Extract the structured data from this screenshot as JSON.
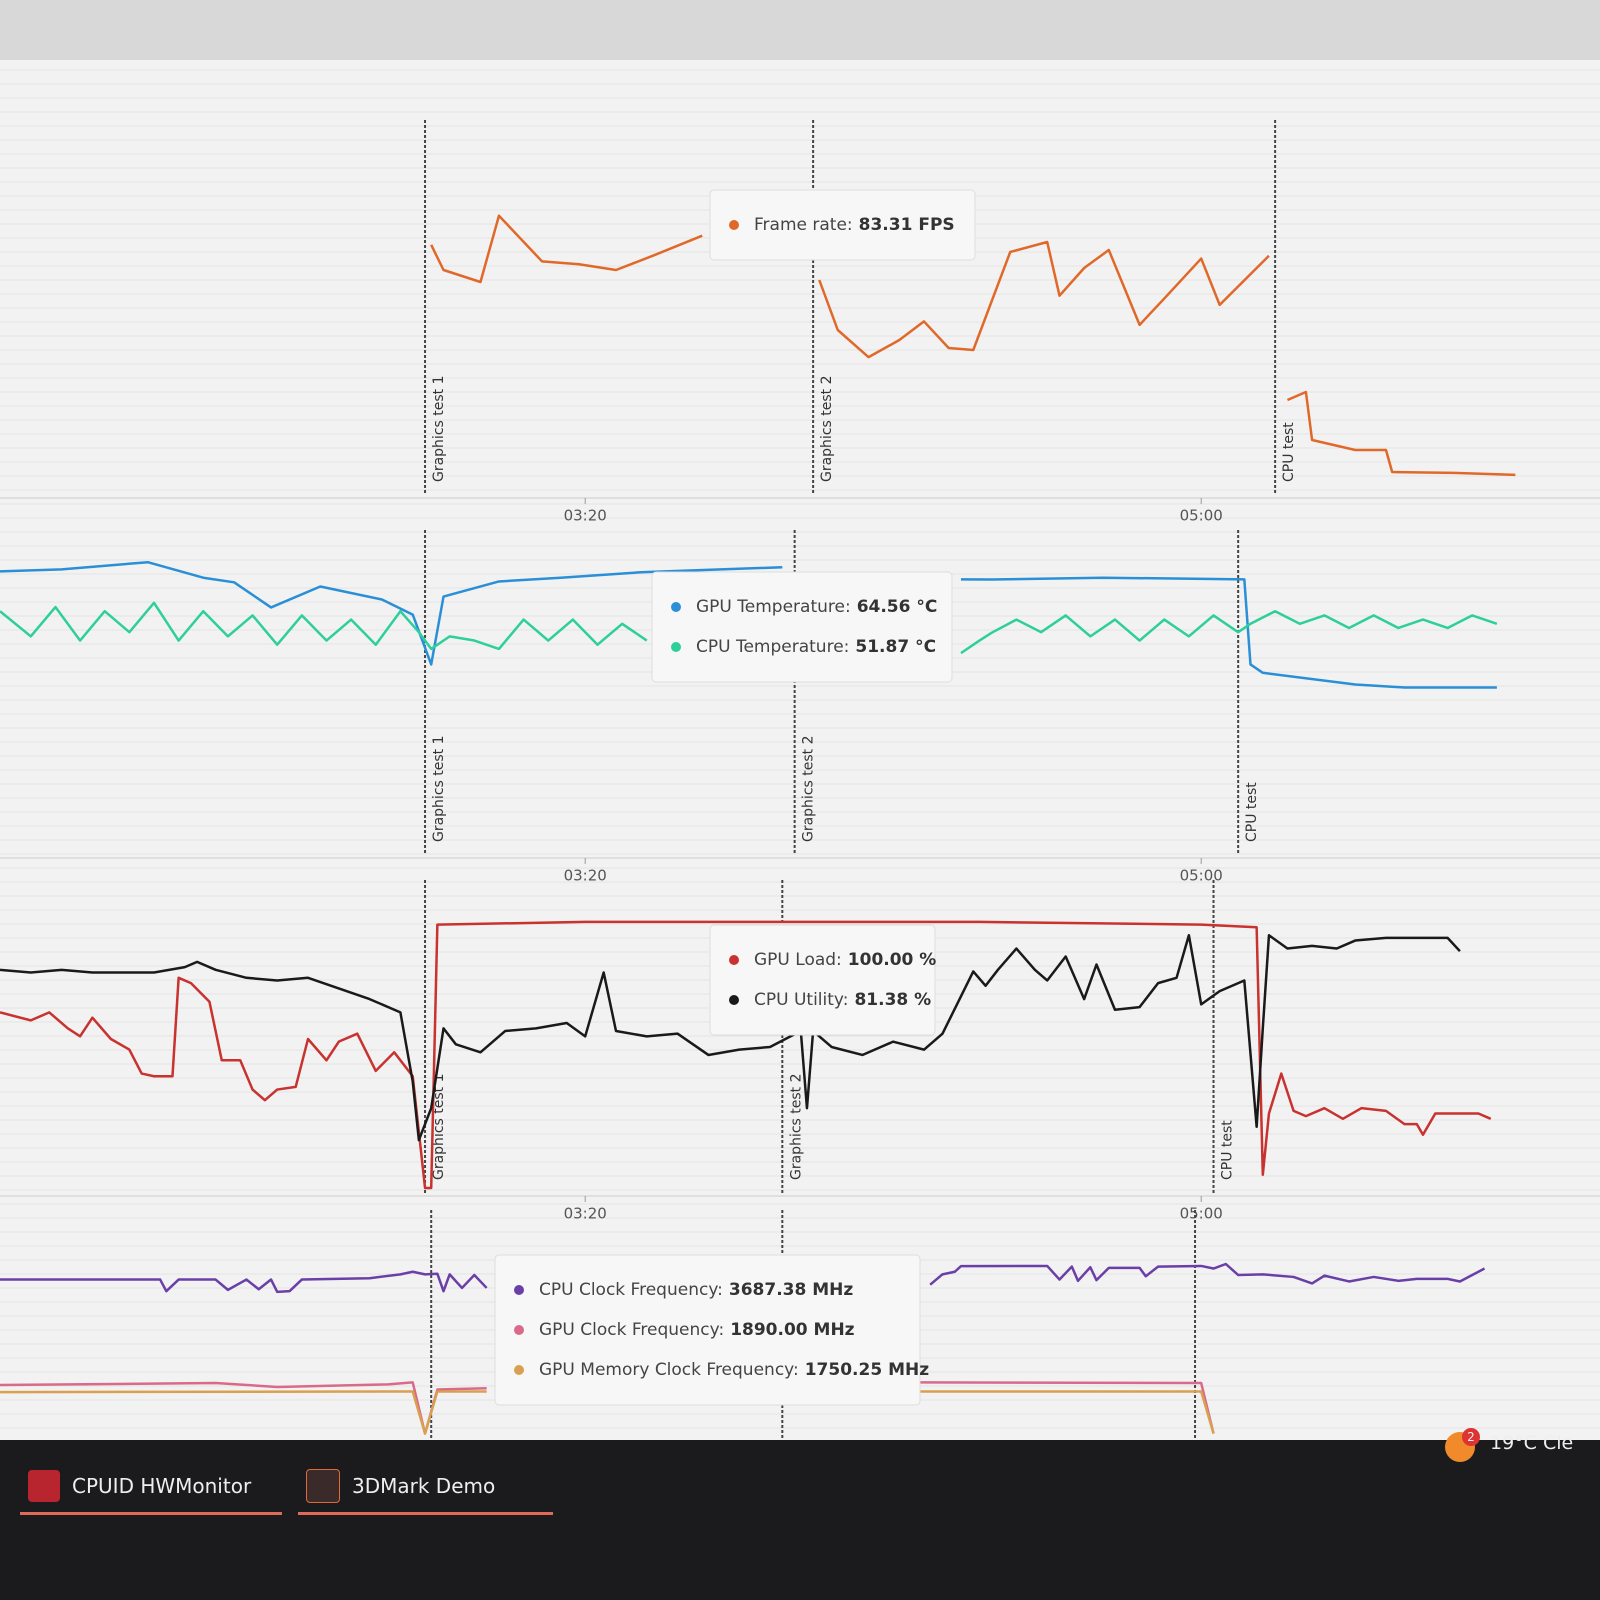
{
  "chart_data": [
    {
      "type": "line",
      "xlim": [
        105,
        355
      ],
      "ylim": [
        0,
        126
      ],
      "xticks": [
        {
          "value": 200,
          "label": "03:20"
        },
        {
          "value": 300,
          "label": "05:00"
        }
      ],
      "markers": [
        {
          "x": 174,
          "label": "Graphics test 1"
        },
        {
          "x": 237,
          "label": "Graphics test 2"
        },
        {
          "x": 312,
          "label": "CPU test"
        }
      ],
      "series": [
        {
          "color": "#e0692a",
          "x": [
            175,
            177,
            183,
            186,
            193,
            199,
            205,
            211,
            219,
            225,
            238,
            241,
            246,
            251,
            255,
            259,
            263,
            269,
            275,
            277,
            281,
            285,
            290,
            294,
            300,
            303,
            311,
            313,
            314,
            317,
            318,
            325,
            330,
            331,
            341,
            351
          ],
          "values": [
            85.8,
            77,
            72.8,
            96,
            80,
            79,
            77,
            82,
            89,
            null,
            73.5,
            56,
            46.5,
            52.5,
            59,
            49.7,
            49,
            83.31,
            86.8,
            68,
            77.7,
            84,
            57.8,
            67,
            81,
            64.8,
            82,
            null,
            31.5,
            34.3,
            17.5,
            14,
            14,
            6.3,
            6,
            5.3
          ]
        }
      ],
      "tooltip": [
        {
          "label": "Frame rate:",
          "value": "83.31 FPS"
        }
      ]
    },
    {
      "type": "line",
      "xlim": [
        105,
        355
      ],
      "ylim": [
        0,
        74
      ],
      "xticks": [
        {
          "value": 200,
          "label": "03:20"
        },
        {
          "value": 300,
          "label": "05:00"
        }
      ],
      "markers": [
        {
          "x": 174,
          "label": "Graphics test 1"
        },
        {
          "x": 234,
          "label": "Graphics test 2"
        },
        {
          "x": 306,
          "label": "CPU test"
        }
      ],
      "series": [
        {
          "color": "#2a8fd6",
          "x": [
            105,
            115,
            129,
            138,
            143,
            149,
            157,
            167,
            172,
            175,
            177,
            186,
            196,
            209,
            232,
            240,
            261,
            266,
            284,
            307,
            308,
            310,
            325,
            333,
            348
          ],
          "values": [
            66.5,
            67,
            68.7,
            65,
            63.9,
            57.9,
            62.9,
            59.8,
            56.2,
            44.3,
            60.5,
            64.1,
            65,
            66.3,
            67.5,
            null,
            64.6,
            64.56,
            65,
            64.6,
            44.3,
            42.3,
            39.5,
            38.8,
            38.8
          ]
        },
        {
          "color": "#2ecf9a",
          "x": [
            105,
            110,
            114,
            118,
            122,
            126,
            130,
            134,
            138,
            142,
            146,
            150,
            154,
            158,
            162,
            166,
            170,
            173,
            175,
            178,
            182,
            186,
            190,
            194,
            198,
            202,
            206,
            210,
            215,
            261,
            264,
            266,
            270,
            274,
            278,
            282,
            286,
            290,
            294,
            298,
            302,
            306,
            308,
            312,
            316,
            320,
            324,
            328,
            332,
            336,
            340,
            344,
            348
          ],
          "values": [
            57,
            51,
            58,
            50,
            57,
            52,
            59,
            50,
            57,
            51,
            56,
            49,
            56,
            50,
            55,
            49,
            57,
            52,
            48,
            51,
            50,
            48,
            55,
            50,
            55,
            49,
            54,
            50,
            null,
            47,
            50,
            51.87,
            55,
            52,
            56,
            51,
            55,
            50,
            55,
            51,
            56,
            52,
            54,
            57,
            54,
            56,
            53,
            56,
            53,
            55,
            53,
            56,
            54
          ]
        }
      ],
      "tooltip": [
        {
          "label": "GPU Temperature:",
          "value": "64.56 °C"
        },
        {
          "label": "CPU Temperature:",
          "value": "51.87 °C"
        }
      ]
    },
    {
      "type": "line",
      "xlim": [
        105,
        355
      ],
      "ylim": [
        0,
        112
      ],
      "xticks": [
        {
          "value": 200,
          "label": "03:20"
        },
        {
          "value": 300,
          "label": "05:00"
        }
      ],
      "markers": [
        {
          "x": 174,
          "label": "Graphics test 1"
        },
        {
          "x": 232,
          "label": "Graphics test 2"
        },
        {
          "x": 302,
          "label": "CPU test"
        }
      ],
      "series": [
        {
          "color": "#c8322f",
          "x": [
            105,
            110,
            113,
            116,
            118,
            120,
            123,
            126,
            128,
            130,
            133,
            134,
            136,
            139,
            141,
            144,
            146,
            148,
            150,
            153,
            155,
            158,
            160,
            163,
            166,
            169,
            172,
            174,
            175,
            176,
            200,
            236,
            264,
            300,
            309,
            310,
            311,
            313,
            315,
            317,
            320,
            323,
            326,
            330,
            333,
            335,
            336,
            338,
            345,
            347
          ],
          "values": [
            66,
            63,
            66,
            60,
            57,
            64,
            56,
            52,
            43,
            42,
            42,
            79,
            77,
            70,
            48,
            48,
            37,
            33,
            37,
            38,
            56,
            48,
            55,
            58,
            44,
            51,
            42,
            0,
            0,
            99,
            100,
            100,
            100,
            99,
            98,
            5,
            28,
            43,
            29,
            27,
            30,
            26,
            30,
            29,
            24,
            24,
            20,
            28,
            28,
            26
          ]
        },
        {
          "color": "#1a1a1a",
          "x": [
            105,
            110,
            115,
            120,
            125,
            130,
            135,
            137,
            140,
            145,
            150,
            155,
            160,
            165,
            170,
            172,
            173,
            175,
            177,
            179,
            183,
            187,
            192,
            197,
            200,
            203,
            205,
            210,
            215,
            220,
            225,
            230,
            235,
            236,
            237,
            240,
            245,
            250,
            255,
            258,
            263,
            265,
            267,
            270,
            273,
            275,
            278,
            281,
            283,
            286,
            290,
            293,
            296,
            298,
            300,
            303,
            307,
            309,
            310,
            311,
            314,
            318,
            322,
            325,
            330,
            335,
            340,
            342
          ],
          "values": [
            82,
            81,
            82,
            81,
            81,
            81,
            83,
            85,
            82,
            79,
            78,
            79,
            75,
            71,
            66,
            40,
            18,
            30,
            60,
            54,
            51,
            59,
            60,
            62,
            57,
            81,
            59,
            57,
            58,
            50,
            52,
            53,
            59,
            30,
            59,
            53,
            50,
            55,
            52,
            58,
            81.38,
            76,
            82,
            90,
            82,
            78,
            87,
            71,
            84,
            67,
            68,
            77,
            79,
            95,
            69,
            74,
            78,
            23,
            60,
            95,
            90,
            91,
            90,
            93,
            94,
            94,
            94,
            89
          ]
        }
      ],
      "tooltip": [
        {
          "label": "GPU Load:",
          "value": "100.00 %"
        },
        {
          "label": "CPU Utility:",
          "value": "81.38 %"
        }
      ]
    },
    {
      "type": "line",
      "xlim": [
        105,
        355
      ],
      "ylim": [
        1000,
        4400
      ],
      "markers": [
        {
          "x": 175
        },
        {
          "x": 232
        },
        {
          "x": 299
        }
      ],
      "series": [
        {
          "color": "#6b3fa8",
          "x": [
            105,
            125,
            131,
            132,
            134,
            140,
            142,
            145,
            147,
            149,
            150,
            152,
            154,
            165,
            170,
            172,
            174,
            176,
            177,
            178,
            180,
            182,
            184,
            185,
            256,
            258,
            260,
            261,
            275,
            277,
            279,
            280,
            282,
            283,
            285,
            290,
            291,
            293,
            300,
            302,
            304,
            306,
            310,
            315,
            318,
            320,
            324,
            328,
            332,
            335,
            340,
            342,
            344,
            346
          ],
          "values": [
            3480,
            3480,
            3480,
            3300,
            3480,
            3480,
            3320,
            3480,
            3330,
            3480,
            3290,
            3300,
            3480,
            3500,
            3560,
            3600,
            3560,
            3570,
            3300,
            3560,
            3350,
            3550,
            3350,
            null,
            3400,
            3560,
            3600,
            3687.38,
            3690,
            3480,
            3680,
            3460,
            3670,
            3470,
            3660,
            3660,
            3530,
            3680,
            3690,
            3650,
            3720,
            3550,
            3560,
            3520,
            3420,
            3540,
            3450,
            3520,
            3460,
            3490,
            3490,
            3450,
            3550,
            3650
          ]
        },
        {
          "color": "#d96a8a",
          "x": [
            105,
            140,
            150,
            168,
            172,
            174,
            176,
            184,
            185,
            253,
            300,
            302
          ],
          "values": [
            1850,
            1880,
            1820,
            1860,
            1890,
            1100,
            1780,
            1800,
            null,
            1890,
            1880,
            1100
          ]
        },
        {
          "color": "#d9a050",
          "x": [
            105,
            172,
            174,
            176,
            184,
            185,
            254,
            300,
            302
          ],
          "values": [
            1740,
            1750,
            1100,
            1750,
            1750,
            null,
            1750.25,
            1750,
            1100
          ]
        }
      ],
      "tooltip": [
        {
          "label": "CPU Clock Frequency:",
          "value": "3687.38 MHz"
        },
        {
          "label": "GPU Clock Frequency:",
          "value": "1890.00 MHz"
        },
        {
          "label": "GPU Memory Clock Frequency:",
          "value": "1750.25 MHz"
        }
      ]
    }
  ],
  "taskbar": {
    "apps": [
      "CPUID HWMonitor",
      "3DMark Demo"
    ],
    "badge": "2",
    "temperature": "19°C",
    "weather": "Cle"
  }
}
